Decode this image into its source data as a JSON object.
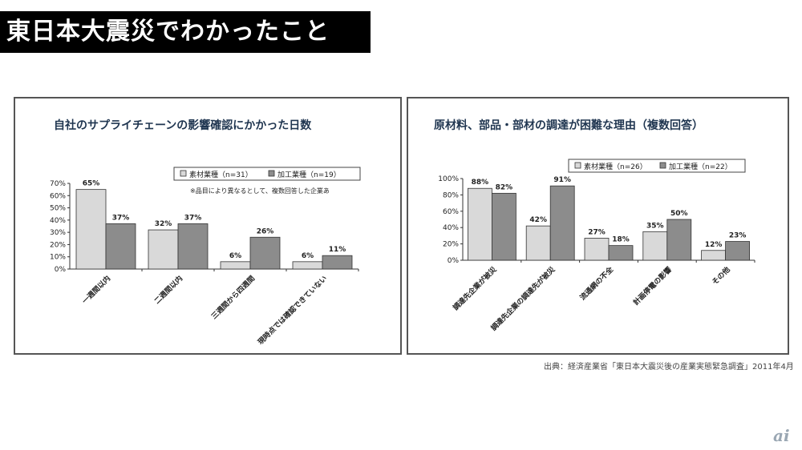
{
  "header": {
    "title": "東日本大震災でわかったこと"
  },
  "footer": {
    "source": "出典：経済産業省「東日本大震災後の産業実態緊急調査」2011年4月",
    "logo": "itmedia-logo"
  },
  "colors": {
    "series1": "#d9d9d9",
    "series2": "#8c8c8c",
    "title_bar": "#000000",
    "chart_title": "#1f3550"
  },
  "chart_data": [
    {
      "type": "bar",
      "title": "自社のサプライチェーンの影響確認にかかった日数",
      "note": "※品目により異なるとして、複数回答した企業あ",
      "categories": [
        "一週間以内",
        "二週間以内",
        "三週間から四週間",
        "現時点では確認できていない"
      ],
      "series": [
        {
          "name": "素材業種（n=31）",
          "values": [
            65,
            32,
            6,
            6
          ],
          "labels": [
            "65%",
            "32%",
            "6%",
            "6%"
          ]
        },
        {
          "name": "加工業種（n=19）",
          "values": [
            37,
            37,
            26,
            11
          ],
          "labels": [
            "37%",
            "37%",
            "26%",
            "11%"
          ]
        }
      ],
      "ylim": [
        0,
        70
      ],
      "yticks": [
        "0%",
        "10%",
        "20%",
        "30%",
        "40%",
        "50%",
        "60%",
        "70%"
      ],
      "grid": false,
      "legend": "top"
    },
    {
      "type": "bar",
      "title": "原材料、部品・部材の調達が困難な理由（複数回答）",
      "categories": [
        "調達先企業が被災",
        "調達先企業の調達先が被災",
        "流通網の不全",
        "計画停電の影響",
        "その他"
      ],
      "series": [
        {
          "name": "素材業種（n=26）",
          "values": [
            88,
            42,
            27,
            35,
            12
          ],
          "labels": [
            "88%",
            "42%",
            "27%",
            "35%",
            "12%"
          ]
        },
        {
          "name": "加工業種（n=22）",
          "values": [
            82,
            91,
            18,
            50,
            23
          ],
          "labels": [
            "82%",
            "91%",
            "18%",
            "50%",
            "23%"
          ]
        }
      ],
      "ylim": [
        0,
        100
      ],
      "yticks": [
        "0%",
        "20%",
        "40%",
        "60%",
        "80%",
        "100%"
      ],
      "grid": false,
      "legend": "top"
    }
  ]
}
